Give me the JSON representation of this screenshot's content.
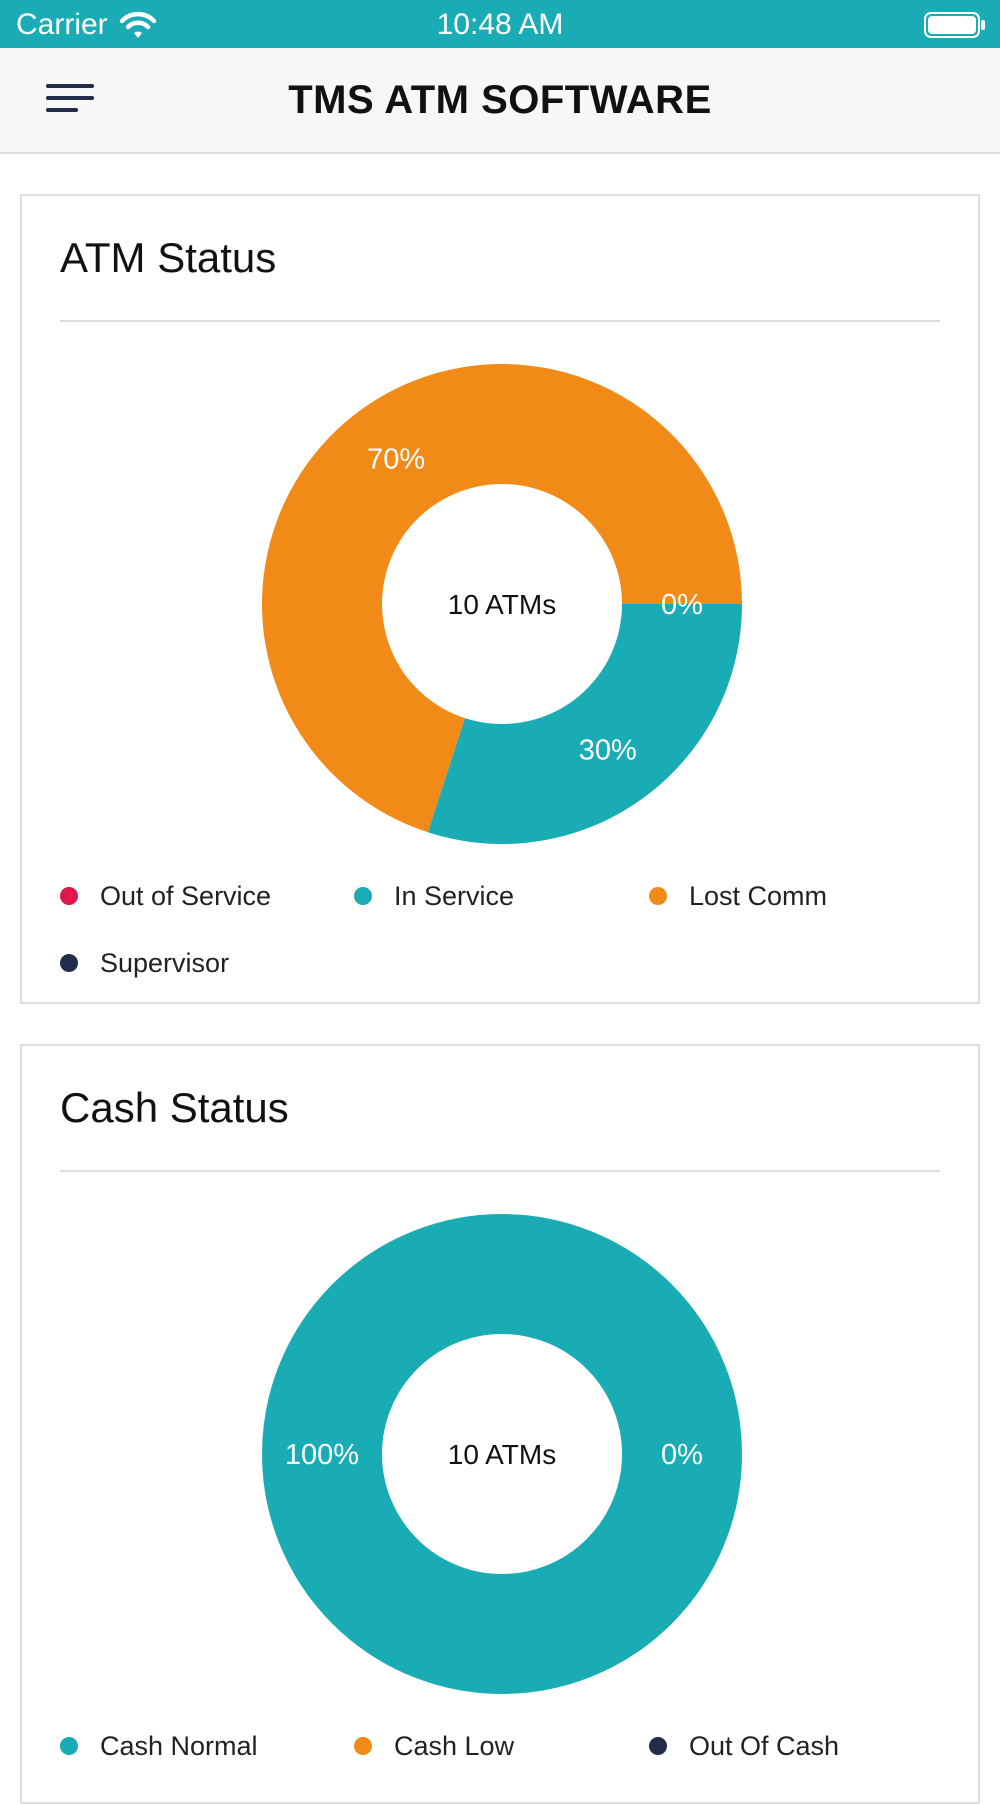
{
  "status_bar": {
    "carrier": "Carrier",
    "time": "10:48 AM",
    "icons": [
      "wifi-icon",
      "battery-icon"
    ]
  },
  "nav": {
    "title": "TMS ATM SOFTWARE",
    "menu_icon": "hamburger-menu-icon"
  },
  "colors": {
    "accent": "#1aacb4",
    "orange": "#f28a17",
    "red": "#e0184a",
    "navy": "#222d4b"
  },
  "cards": [
    {
      "title": "ATM Status",
      "center_label": "10 ATMs",
      "legend": [
        {
          "label": "Out of Service",
          "color": "#e0184a"
        },
        {
          "label": "In Service",
          "color": "#1aacb4"
        },
        {
          "label": "Lost Comm",
          "color": "#f28a17"
        },
        {
          "label": "Supervisor",
          "color": "#222d4b"
        }
      ]
    },
    {
      "title": "Cash Status",
      "center_label": "10 ATMs",
      "legend": [
        {
          "label": "Cash Normal",
          "color": "#1aacb4"
        },
        {
          "label": "Cash Low",
          "color": "#f28a17"
        },
        {
          "label": "Out Of Cash",
          "color": "#222d4b"
        }
      ]
    }
  ],
  "chart_data": [
    {
      "type": "pie",
      "title": "ATM Status",
      "center_label": "10 ATMs",
      "slices": [
        {
          "name": "Out of Service",
          "value": 0,
          "label": "0%",
          "color": "#e0184a"
        },
        {
          "name": "In Service",
          "value": 30,
          "label": "30%",
          "color": "#1aacb4"
        },
        {
          "name": "Lost Comm",
          "value": 70,
          "label": "70%",
          "color": "#f28a17"
        },
        {
          "name": "Supervisor",
          "value": 0,
          "label": "",
          "color": "#222d4b"
        }
      ]
    },
    {
      "type": "pie",
      "title": "Cash Status",
      "center_label": "10 ATMs",
      "slices": [
        {
          "name": "Cash Normal",
          "value": 100,
          "label": "100%",
          "color": "#1aacb4"
        },
        {
          "name": "Cash Low",
          "value": 0,
          "label": "0%",
          "color": "#f28a17"
        },
        {
          "name": "Out Of Cash",
          "value": 0,
          "label": "",
          "color": "#222d4b"
        }
      ]
    }
  ]
}
